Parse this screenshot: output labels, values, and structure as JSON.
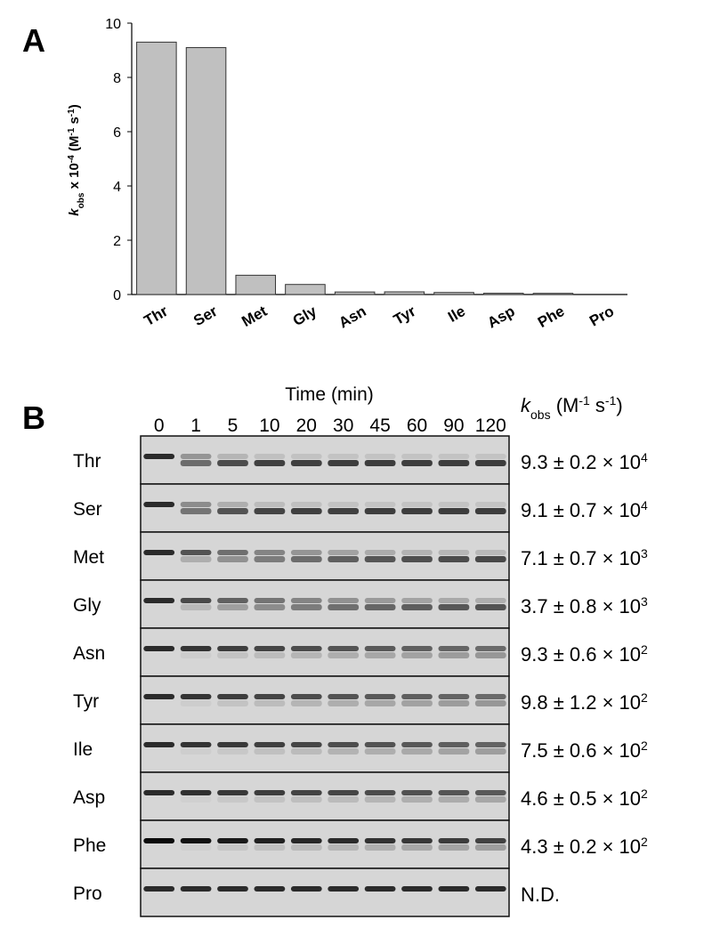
{
  "panel_a": {
    "label": "A"
  },
  "chart_data": {
    "type": "bar",
    "ylabel_parts": [
      "k",
      "obs",
      " x 10",
      "-4",
      " (M",
      "-1",
      " s",
      "-1",
      ")"
    ],
    "categories": [
      "Thr",
      "Ser",
      "Met",
      "Gly",
      "Asn",
      "Tyr",
      "Ile",
      "Asp",
      "Phe",
      "Pro"
    ],
    "values": [
      9.3,
      9.1,
      0.71,
      0.37,
      0.093,
      0.098,
      0.075,
      0.046,
      0.043,
      0
    ],
    "color": "#c0c0c0",
    "ylim": [
      0,
      10
    ],
    "yticks": [
      0,
      2,
      4,
      6,
      8,
      10
    ]
  },
  "panel_b": {
    "label": "B",
    "title": "Time (min)",
    "times": [
      "0",
      "1",
      "5",
      "10",
      "20",
      "30",
      "45",
      "60",
      "90",
      "120"
    ],
    "rate_header": [
      "k",
      "obs",
      " (M",
      "-1",
      " s",
      "-1",
      ")"
    ],
    "rows": [
      {
        "name": "Thr",
        "rate": [
          "9.3 ± 0.2 × 10",
          "4"
        ]
      },
      {
        "name": "Ser",
        "rate": [
          "9.1 ± 0.7 × 10",
          "4"
        ]
      },
      {
        "name": "Met",
        "rate": [
          "7.1 ± 0.7 × 10",
          "3"
        ]
      },
      {
        "name": "Gly",
        "rate": [
          "3.7 ± 0.8 × 10",
          "3"
        ]
      },
      {
        "name": "Asn",
        "rate": [
          "9.3 ± 0.6 × 10",
          "2"
        ]
      },
      {
        "name": "Tyr",
        "rate": [
          "9.8 ± 1.2 × 10",
          "2"
        ]
      },
      {
        "name": "Ile",
        "rate": [
          "7.5 ± 0.6 × 10",
          "2"
        ]
      },
      {
        "name": "Asp",
        "rate": [
          "4.6 ± 0.5 × 10",
          "2"
        ]
      },
      {
        "name": "Phe",
        "rate": [
          "4.3 ± 0.2 × 10",
          "2"
        ]
      },
      {
        "name": "Pro",
        "rate": [
          "N.D."
        ]
      }
    ]
  }
}
